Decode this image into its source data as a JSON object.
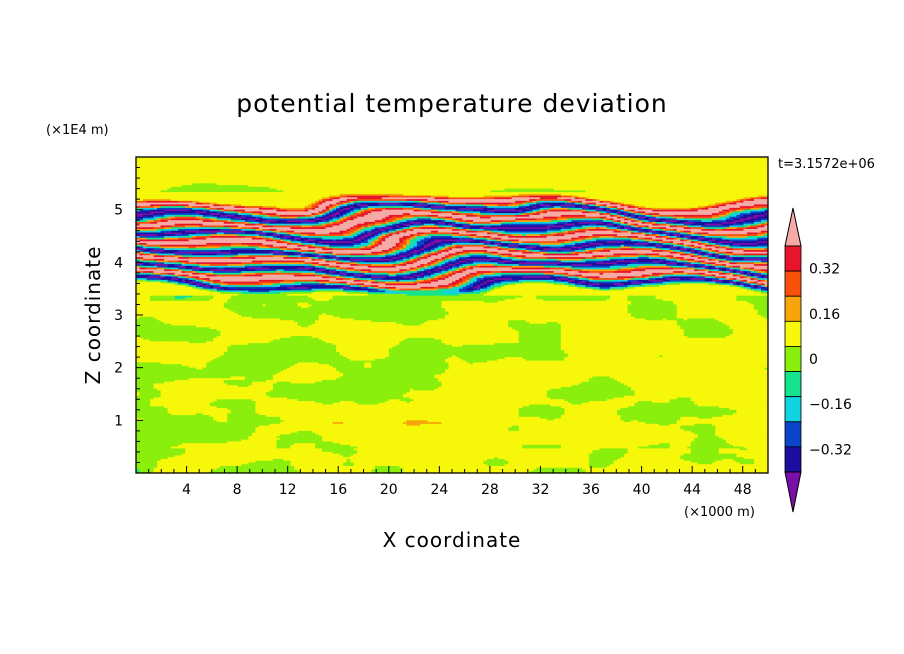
{
  "chart_data": {
    "type": "heatmap",
    "title": "potential temperature deviation",
    "xlabel": "X coordinate",
    "ylabel": "Z coordinate",
    "x_scale_label": "(×1000 m)",
    "y_scale_label": "(×1E4 m)",
    "time_label": "t=3.1572e+06",
    "xlim": [
      0,
      50
    ],
    "ylim": [
      0,
      6
    ],
    "x_ticks": [
      "4",
      "8",
      "12",
      "16",
      "20",
      "24",
      "28",
      "32",
      "36",
      "40",
      "44",
      "48"
    ],
    "y_ticks": [
      "1",
      "2",
      "3",
      "4",
      "5"
    ],
    "colorbar": {
      "levels": [
        -0.4,
        -0.32,
        -0.24,
        -0.16,
        -0.08,
        0,
        0.08,
        0.16,
        0.24,
        0.32,
        0.4
      ],
      "labels": [
        "0.32",
        "0.16",
        "0",
        "−0.16",
        "−0.32"
      ],
      "colors": [
        "#7b0da8",
        "#1c0e9e",
        "#0a45c9",
        "#12d3e0",
        "#16e38e",
        "#8bef0d",
        "#f7f70b",
        "#f7a50b",
        "#f9500c",
        "#e8152a",
        "#f5aaa6"
      ]
    },
    "bands": [
      {
        "z": 5.12,
        "value": 0.45
      },
      {
        "z": 4.95,
        "value": -0.45
      },
      {
        "z": 4.78,
        "value": 0.45
      },
      {
        "z": 4.6,
        "value": -0.45
      },
      {
        "z": 4.43,
        "value": 0.45
      },
      {
        "z": 4.25,
        "value": -0.45
      },
      {
        "z": 4.08,
        "value": 0.45
      },
      {
        "z": 3.9,
        "value": -0.45
      },
      {
        "z": 3.72,
        "value": 0.45
      },
      {
        "z": 3.55,
        "value": -0.45
      }
    ]
  }
}
